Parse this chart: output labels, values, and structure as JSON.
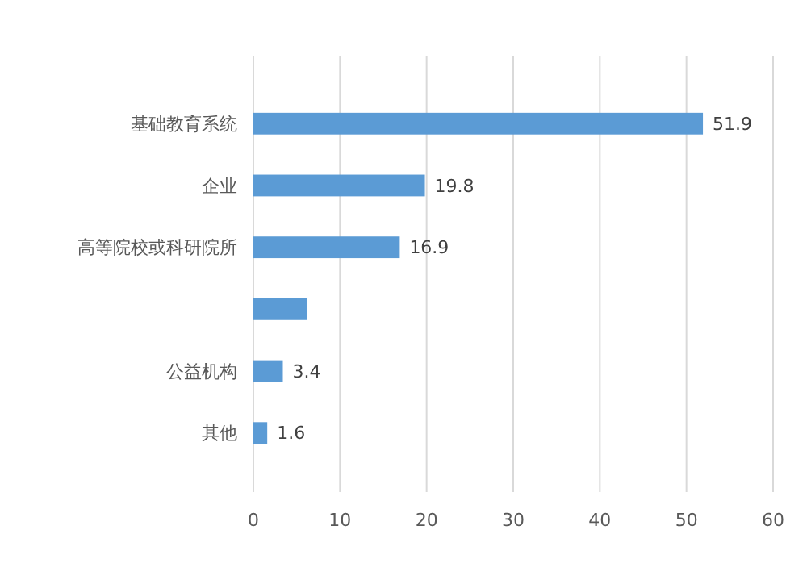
{
  "chart_data": {
    "type": "bar",
    "orientation": "horizontal",
    "categories": [
      "基础教育系统",
      "企业",
      "高等院校或科研院所",
      null,
      "公益机构",
      "其他"
    ],
    "values": [
      51.9,
      19.8,
      16.9,
      6.2,
      3.4,
      1.6
    ],
    "value_labels": [
      "51.9",
      "19.8",
      "16.9",
      null,
      "3.4",
      "1.6"
    ],
    "color": "#5b9bd5",
    "xlim": [
      0,
      60
    ],
    "xticks": [
      0,
      10,
      20,
      30,
      40,
      50,
      60
    ],
    "grid": "x"
  }
}
